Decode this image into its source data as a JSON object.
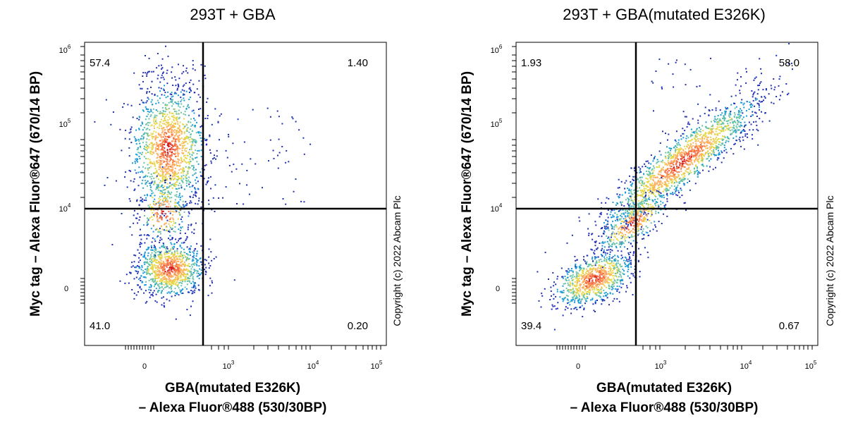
{
  "chart_data": [
    {
      "type": "scatter",
      "title": "293T + GBA",
      "xlabel_line1": "GBA(mutated E326K)",
      "xlabel_line2": "– Alexa Fluor®488 (530/30BP)",
      "ylabel": "Myc tag – Alexa Fluor®647 (670/14 BP)",
      "x_scale": "biexponential",
      "y_scale": "biexponential",
      "x_ticks": [
        {
          "base": "0",
          "exp": ""
        },
        {
          "base": "10",
          "exp": "3"
        },
        {
          "base": "10",
          "exp": "4"
        },
        {
          "base": "10",
          "exp": "5"
        }
      ],
      "y_ticks": [
        {
          "base": "0",
          "exp": ""
        },
        {
          "base": "10",
          "exp": "4"
        },
        {
          "base": "10",
          "exp": "5"
        },
        {
          "base": "10",
          "exp": "6"
        }
      ],
      "quadrants": {
        "top_left": "57.4",
        "top_right": "1.40",
        "bottom_left": "41.0",
        "bottom_right": "0.20"
      },
      "copyright": "Copyright (c) 2022 Abcam Plc"
    },
    {
      "type": "scatter",
      "title": "293T + GBA(mutated E326K)",
      "xlabel_line1": "GBA(mutated E326K)",
      "xlabel_line2": "– Alexa Fluor®488 (530/30BP)",
      "ylabel": "Myc tag – Alexa Fluor®647 (670/14 BP)",
      "x_scale": "biexponential",
      "y_scale": "biexponential",
      "x_ticks": [
        {
          "base": "0",
          "exp": ""
        },
        {
          "base": "10",
          "exp": "3"
        },
        {
          "base": "10",
          "exp": "4"
        },
        {
          "base": "10",
          "exp": "5"
        }
      ],
      "y_ticks": [
        {
          "base": "0",
          "exp": ""
        },
        {
          "base": "10",
          "exp": "4"
        },
        {
          "base": "10",
          "exp": "5"
        },
        {
          "base": "10",
          "exp": "6"
        }
      ],
      "quadrants": {
        "top_left": "1.93",
        "top_right": "58.0",
        "bottom_left": "39.4",
        "bottom_right": "0.67"
      },
      "copyright": "Copyright (c) 2022 Abcam Plc"
    }
  ]
}
